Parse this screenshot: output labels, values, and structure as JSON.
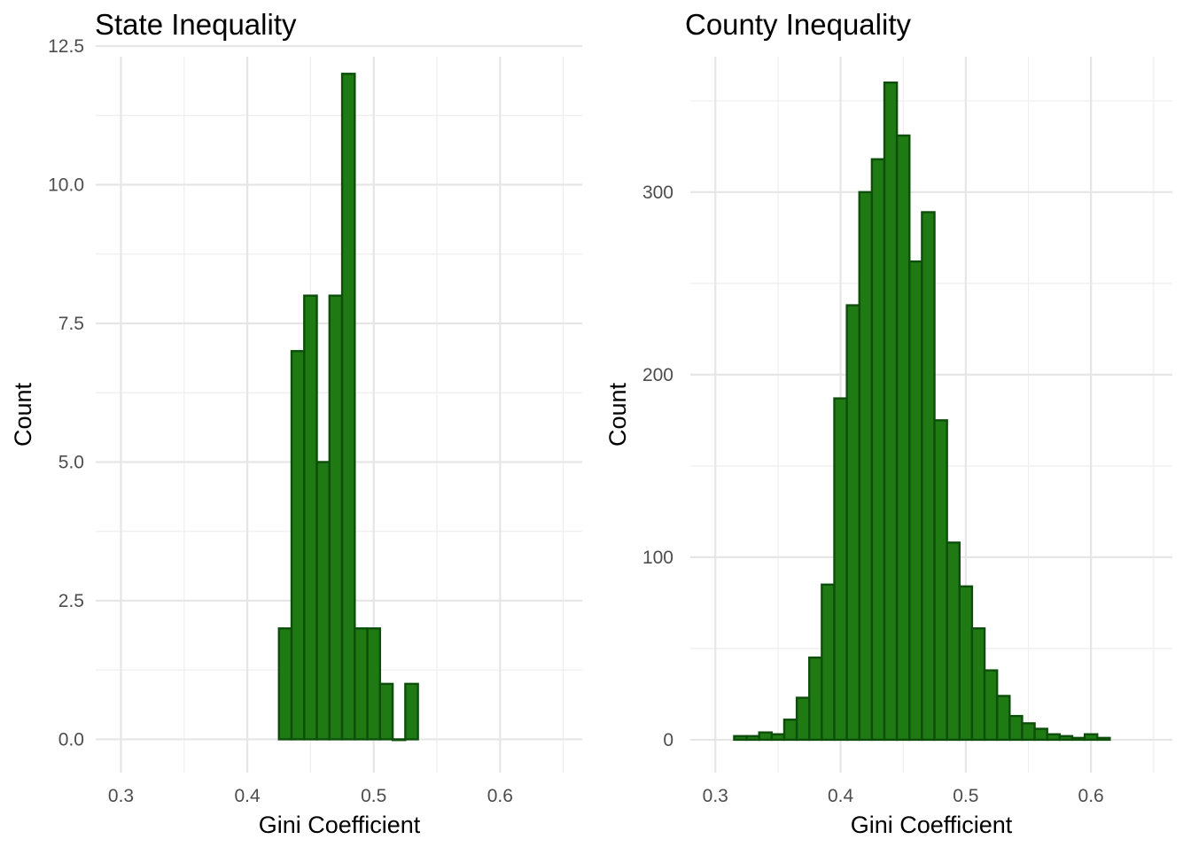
{
  "colors": {
    "bar_fill": "#1f7a14",
    "bar_stroke": "#0d4f0a",
    "grid_major": "#e6e6e6",
    "grid_minor": "#eeeeee",
    "background": "#ffffff"
  },
  "chart_data": [
    {
      "type": "bar",
      "title": "State Inequality",
      "xlabel": "Gini Coefficient",
      "ylabel": "Count",
      "xlim": [
        0.28,
        0.665
      ],
      "ylim": [
        -0.6,
        12.5
      ],
      "x_ticks": [
        0.3,
        0.4,
        0.5,
        0.6
      ],
      "x_tick_labels": [
        "0.3",
        "0.4",
        "0.5",
        "0.6"
      ],
      "y_ticks": [
        0,
        2.5,
        5,
        7.5,
        10,
        12.5
      ],
      "y_tick_labels": [
        "0.0",
        "2.5",
        "5.0",
        "7.5",
        "10.0",
        "12.5"
      ],
      "grid": true,
      "bin_width": 0.01,
      "bin_starts": [
        0.425,
        0.435,
        0.445,
        0.455,
        0.465,
        0.475,
        0.485,
        0.495,
        0.505,
        0.515,
        0.525
      ],
      "values": [
        2,
        7,
        8,
        5,
        8,
        12,
        2,
        2,
        1,
        0,
        1
      ]
    },
    {
      "type": "bar",
      "title": "County Inequality",
      "xlabel": "Gini Coefficient",
      "ylabel": "Count",
      "xlim": [
        0.28,
        0.665
      ],
      "ylim": [
        -18,
        380
      ],
      "x_ticks": [
        0.3,
        0.4,
        0.5,
        0.6
      ],
      "x_tick_labels": [
        "0.3",
        "0.4",
        "0.5",
        "0.6"
      ],
      "y_ticks": [
        0,
        100,
        200,
        300
      ],
      "y_tick_labels": [
        "0",
        "100",
        "200",
        "300"
      ],
      "grid": true,
      "bin_width": 0.01,
      "bin_starts": [
        0.315,
        0.325,
        0.335,
        0.345,
        0.355,
        0.365,
        0.375,
        0.385,
        0.395,
        0.405,
        0.415,
        0.425,
        0.435,
        0.445,
        0.455,
        0.465,
        0.475,
        0.485,
        0.495,
        0.505,
        0.515,
        0.525,
        0.535,
        0.545,
        0.555,
        0.565,
        0.575,
        0.585,
        0.595,
        0.605
      ],
      "values": [
        2,
        2,
        4,
        3,
        11,
        23,
        45,
        85,
        187,
        238,
        300,
        318,
        360,
        331,
        262,
        289,
        175,
        108,
        84,
        61,
        38,
        24,
        13,
        9,
        6,
        3,
        2,
        1,
        3,
        1
      ]
    }
  ]
}
